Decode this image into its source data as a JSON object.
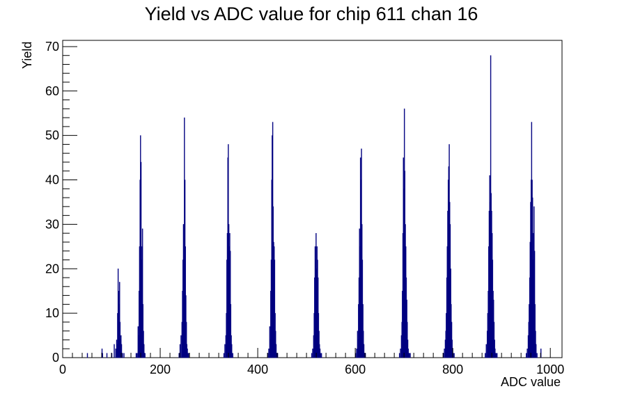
{
  "chart_data": {
    "type": "bar",
    "title": "Yield vs ADC value for chip 611 chan 16",
    "xlabel": "ADC value",
    "ylabel": "Yield",
    "xlim": [
      0,
      1024
    ],
    "ylim": [
      0,
      71.4
    ],
    "grid": false,
    "legend": "none",
    "x_ticks": [
      "0",
      "200",
      "400",
      "600",
      "800",
      "1000"
    ],
    "y_ticks": [
      "0",
      "10",
      "20",
      "30",
      "40",
      "50",
      "60",
      "70"
    ],
    "series": [
      {
        "color": "#000080",
        "x": [
          50,
          80,
          81,
          90,
          100,
          105,
          108,
          110,
          111,
          112,
          113,
          114,
          115,
          116,
          117,
          118,
          119,
          120,
          121,
          122,
          125,
          150,
          152,
          154,
          155,
          156,
          157,
          158,
          159,
          160,
          161,
          162,
          163,
          164,
          165,
          166,
          167,
          168,
          238,
          240,
          242,
          244,
          245,
          246,
          247,
          248,
          249,
          250,
          251,
          252,
          253,
          254,
          255,
          256,
          258,
          330,
          332,
          334,
          335,
          336,
          337,
          338,
          339,
          340,
          341,
          342,
          343,
          344,
          345,
          346,
          348,
          420,
          422,
          424,
          425,
          426,
          427,
          428,
          429,
          430,
          431,
          432,
          433,
          434,
          435,
          436,
          437,
          438,
          440,
          510,
          512,
          514,
          515,
          516,
          517,
          518,
          519,
          520,
          521,
          522,
          523,
          524,
          525,
          526,
          527,
          528,
          530,
          600,
          602,
          604,
          605,
          606,
          607,
          608,
          609,
          610,
          611,
          612,
          613,
          614,
          615,
          616,
          617,
          618,
          620,
          690,
          692,
          694,
          695,
          696,
          697,
          698,
          699,
          700,
          701,
          702,
          703,
          704,
          705,
          706,
          707,
          708,
          709,
          710,
          712,
          780,
          782,
          784,
          785,
          786,
          787,
          788,
          789,
          790,
          791,
          792,
          793,
          794,
          795,
          796,
          797,
          798,
          799,
          800,
          802,
          866,
          868,
          870,
          871,
          872,
          873,
          874,
          875,
          876,
          877,
          878,
          879,
          880,
          881,
          882,
          883,
          884,
          885,
          886,
          887,
          888,
          890,
          950,
          952,
          954,
          955,
          956,
          957,
          958,
          959,
          960,
          961,
          962,
          963,
          964,
          965,
          966,
          967,
          968,
          969,
          970,
          972,
          980
        ],
        "values": [
          1,
          2,
          1,
          1,
          1,
          3,
          2,
          4,
          3,
          10,
          20,
          15,
          12,
          17,
          8,
          4,
          5,
          3,
          1,
          1,
          1,
          1,
          1,
          7,
          5,
          15,
          25,
          40,
          50,
          44,
          22,
          25,
          29,
          12,
          6,
          3,
          1,
          1,
          1,
          3,
          5,
          8,
          15,
          22,
          30,
          30,
          54,
          40,
          25,
          14,
          8,
          3,
          2,
          1,
          1,
          1,
          3,
          5,
          10,
          22,
          28,
          45,
          48,
          30,
          25,
          28,
          24,
          12,
          5,
          3,
          1,
          1,
          2,
          7,
          4,
          15,
          22,
          40,
          50,
          53,
          34,
          26,
          25,
          22,
          10,
          6,
          3,
          1,
          1,
          1,
          2,
          5,
          10,
          18,
          25,
          22,
          28,
          20,
          25,
          22,
          18,
          10,
          6,
          3,
          2,
          1,
          1,
          1,
          2,
          6,
          4,
          12,
          18,
          29,
          25,
          45,
          40,
          47,
          30,
          22,
          12,
          6,
          3,
          1,
          1,
          1,
          2,
          5,
          8,
          15,
          28,
          45,
          38,
          56,
          42,
          30,
          25,
          18,
          13,
          8,
          4,
          2,
          1,
          1,
          1,
          1,
          2,
          4,
          6,
          10,
          18,
          25,
          33,
          40,
          43,
          48,
          35,
          30,
          20,
          12,
          8,
          4,
          2,
          1,
          1,
          1,
          3,
          6,
          10,
          15,
          25,
          33,
          41,
          35,
          68,
          37,
          33,
          28,
          22,
          15,
          13,
          8,
          4,
          2,
          1,
          1,
          1,
          1,
          2,
          5,
          8,
          12,
          18,
          26,
          35,
          40,
          53,
          40,
          36,
          22,
          28,
          34,
          24,
          12,
          6,
          3,
          1,
          2
        ]
      }
    ]
  }
}
